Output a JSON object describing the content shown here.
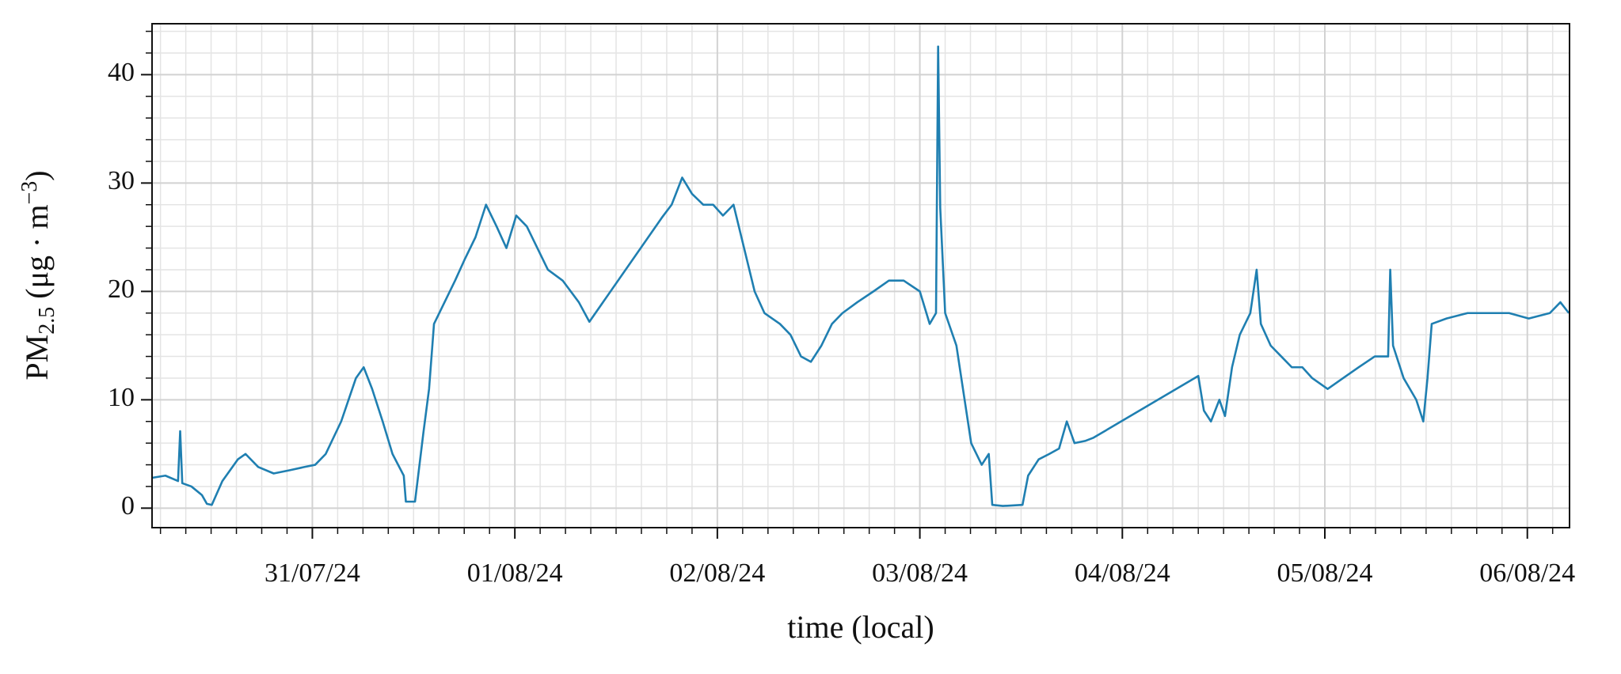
{
  "chart_data": {
    "type": "line",
    "xlabel": "time (local)",
    "ylabel": [
      "PM",
      "2.5",
      " (μg · m",
      "−3",
      ")"
    ],
    "xlim": [
      "2024-07-30T05:00",
      "2024-08-06T05:00"
    ],
    "ylim": [
      -1.8,
      44.7
    ],
    "xticks": [
      {
        "value": "2024-07-31T00:00",
        "label": "31/07/24"
      },
      {
        "value": "2024-08-01T00:00",
        "label": "01/08/24"
      },
      {
        "value": "2024-08-02T00:00",
        "label": "02/08/24"
      },
      {
        "value": "2024-08-03T00:00",
        "label": "03/08/24"
      },
      {
        "value": "2024-08-04T00:00",
        "label": "04/08/24"
      },
      {
        "value": "2024-08-05T00:00",
        "label": "05/08/24"
      },
      {
        "value": "2024-08-06T00:00",
        "label": "06/08/24"
      }
    ],
    "xminorticks": [
      "2024-07-30T06:00",
      "2024-07-30T09:00",
      "2024-07-30T12:00",
      "2024-07-30T15:00",
      "2024-07-30T18:00",
      "2024-07-30T21:00",
      "2024-07-31T03:00",
      "2024-07-31T06:00",
      "2024-07-31T09:00",
      "2024-07-31T12:00",
      "2024-07-31T15:00",
      "2024-07-31T18:00",
      "2024-07-31T21:00",
      "2024-08-01T03:00",
      "2024-08-01T06:00",
      "2024-08-01T09:00",
      "2024-08-01T12:00",
      "2024-08-01T15:00",
      "2024-08-01T18:00",
      "2024-08-01T21:00",
      "2024-08-02T03:00",
      "2024-08-02T06:00",
      "2024-08-02T09:00",
      "2024-08-02T12:00",
      "2024-08-02T15:00",
      "2024-08-02T18:00",
      "2024-08-02T21:00",
      "2024-08-03T03:00",
      "2024-08-03T06:00",
      "2024-08-03T09:00",
      "2024-08-03T12:00",
      "2024-08-03T15:00",
      "2024-08-03T18:00",
      "2024-08-03T21:00",
      "2024-08-04T03:00",
      "2024-08-04T06:00",
      "2024-08-04T09:00",
      "2024-08-04T12:00",
      "2024-08-04T15:00",
      "2024-08-04T18:00",
      "2024-08-04T21:00",
      "2024-08-05T03:00",
      "2024-08-05T06:00",
      "2024-08-05T09:00",
      "2024-08-05T12:00",
      "2024-08-05T15:00",
      "2024-08-05T18:00",
      "2024-08-05T21:00",
      "2024-08-06T03:00"
    ],
    "yticks": [
      0,
      10,
      20,
      30,
      40
    ],
    "yminorticks": [
      2,
      4,
      6,
      8,
      12,
      14,
      16,
      18,
      22,
      24,
      26,
      28,
      32,
      34,
      36,
      38,
      42,
      44
    ],
    "grid": true,
    "x": [
      "2024-07-30T05:00",
      "2024-07-30T06:35",
      "2024-07-30T08:05",
      "2024-07-30T08:20",
      "2024-07-30T08:35",
      "2024-07-30T09:40",
      "2024-07-30T10:55",
      "2024-07-30T11:30",
      "2024-07-30T12:05",
      "2024-07-30T13:20",
      "2024-07-30T15:10",
      "2024-07-30T16:05",
      "2024-07-30T17:35",
      "2024-07-30T19:25",
      "2024-07-30T21:20",
      "2024-07-30T23:05",
      "2024-07-31T00:20",
      "2024-07-31T01:35",
      "2024-07-31T03:25",
      "2024-07-31T05:10",
      "2024-07-31T06:05",
      "2024-07-31T07:05",
      "2024-07-31T08:20",
      "2024-07-31T09:30",
      "2024-07-31T10:50",
      "2024-07-31T11:05",
      "2024-07-31T12:10",
      "2024-07-31T13:10",
      "2024-07-31T13:50",
      "2024-07-31T14:25",
      "2024-07-31T15:40",
      "2024-07-31T16:55",
      "2024-07-31T18:05",
      "2024-07-31T19:20",
      "2024-07-31T20:35",
      "2024-07-31T21:50",
      "2024-07-31T23:00",
      "2024-08-01T00:10",
      "2024-08-01T01:25",
      "2024-08-01T02:40",
      "2024-08-01T03:55",
      "2024-08-01T05:40",
      "2024-08-01T07:35",
      "2024-08-01T08:50",
      "2024-08-01T17:25",
      "2024-08-01T18:35",
      "2024-08-01T19:50",
      "2024-08-01T21:00",
      "2024-08-01T22:20",
      "2024-08-01T23:30",
      "2024-08-02T00:40",
      "2024-08-02T01:55",
      "2024-08-02T03:10",
      "2024-08-02T04:25",
      "2024-08-02T05:35",
      "2024-08-02T07:25",
      "2024-08-02T08:40",
      "2024-08-02T09:55",
      "2024-08-02T11:05",
      "2024-08-02T12:20",
      "2024-08-02T13:35",
      "2024-08-02T14:50",
      "2024-08-02T16:35",
      "2024-08-02T18:30",
      "2024-08-02T20:20",
      "2024-08-02T22:05",
      "2024-08-03T00:00",
      "2024-08-03T01:10",
      "2024-08-03T01:55",
      "2024-08-03T02:10",
      "2024-08-03T02:25",
      "2024-08-03T03:00",
      "2024-08-03T04:20",
      "2024-08-03T05:30",
      "2024-08-03T06:05",
      "2024-08-03T07:20",
      "2024-08-03T08:10",
      "2024-08-03T08:35",
      "2024-08-03T09:50",
      "2024-08-03T12:10",
      "2024-08-03T12:50",
      "2024-08-03T14:05",
      "2024-08-03T15:20",
      "2024-08-03T16:30",
      "2024-08-03T17:25",
      "2024-08-03T18:20",
      "2024-08-03T19:35",
      "2024-08-03T20:35",
      "2024-08-04T09:00",
      "2024-08-04T09:40",
      "2024-08-04T10:30",
      "2024-08-04T11:30",
      "2024-08-04T12:10",
      "2024-08-04T13:00",
      "2024-08-04T13:55",
      "2024-08-04T15:10",
      "2024-08-04T15:55",
      "2024-08-04T16:25",
      "2024-08-04T17:35",
      "2024-08-04T18:50",
      "2024-08-04T20:05",
      "2024-08-04T21:20",
      "2024-08-04T22:30",
      "2024-08-05T00:20",
      "2024-08-05T02:10",
      "2024-08-05T04:00",
      "2024-08-05T05:55",
      "2024-08-05T07:30",
      "2024-08-05T07:45",
      "2024-08-05T08:05",
      "2024-08-05T09:20",
      "2024-08-05T10:50",
      "2024-08-05T11:40",
      "2024-08-05T12:10",
      "2024-08-05T12:40",
      "2024-08-05T14:25",
      "2024-08-05T16:55",
      "2024-08-05T19:20",
      "2024-08-05T21:50",
      "2024-08-06T00:10",
      "2024-08-06T02:40",
      "2024-08-06T03:55",
      "2024-08-06T04:55"
    ],
    "series": [
      {
        "color": "#1f7fb1",
        "values": [
          2.8,
          3.0,
          2.5,
          7.1,
          2.3,
          2.0,
          1.2,
          0.4,
          0.3,
          2.5,
          4.5,
          5.0,
          3.8,
          3.2,
          3.5,
          3.8,
          4.0,
          5.0,
          8.0,
          12.0,
          13.0,
          11.0,
          8.0,
          5.0,
          3.0,
          0.6,
          0.6,
          7.0,
          11.0,
          17.0,
          19.0,
          21.0,
          23.0,
          25.0,
          28.0,
          26.0,
          24.0,
          27.0,
          26.0,
          24.0,
          22.0,
          21.0,
          19.0,
          17.2,
          26.8,
          28.0,
          30.5,
          29.0,
          28.0,
          28.0,
          27.0,
          28.0,
          24.0,
          20.0,
          18.0,
          17.0,
          16.0,
          14.0,
          13.5,
          15.0,
          17.0,
          18.0,
          19.0,
          20.0,
          21.0,
          21.0,
          20.0,
          17.0,
          18.0,
          42.6,
          27.7,
          18.0,
          15.0,
          9.0,
          6.0,
          4.0,
          5.0,
          0.3,
          0.2,
          0.3,
          3.0,
          4.5,
          5.0,
          5.5,
          8.0,
          6.0,
          6.2,
          6.5,
          12.2,
          9.0,
          8.0,
          10.0,
          8.5,
          13.0,
          16.0,
          18.0,
          22.0,
          17.0,
          15.0,
          14.0,
          13.0,
          13.0,
          12.0,
          11.0,
          12.0,
          13.0,
          14.0,
          14.0,
          22.0,
          15.0,
          12.0,
          10.0,
          8.0,
          12.0,
          17.0,
          17.5,
          18.0,
          18.0,
          18.0,
          17.5,
          18.0,
          19.0,
          18.0
        ]
      }
    ]
  }
}
